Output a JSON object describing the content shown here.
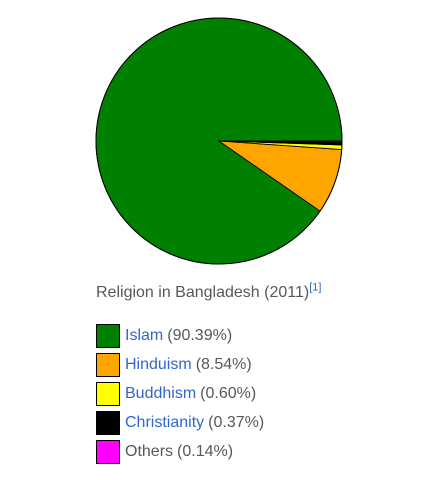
{
  "chart_data": {
    "type": "pie",
    "title": "Religion in Bangladesh (2011)",
    "citation": "[1]",
    "slices": [
      {
        "name": "Islam",
        "value": 90.39,
        "label": "(90.39%)",
        "color": "#008000",
        "linked": true
      },
      {
        "name": "Hinduism",
        "value": 8.54,
        "label": "(8.54%)",
        "color": "#ffa500",
        "linked": true
      },
      {
        "name": "Buddhism",
        "value": 0.6,
        "label": "(0.60%)",
        "color": "#ffff00",
        "linked": true
      },
      {
        "name": "Christianity",
        "value": 0.37,
        "label": "(0.37%)",
        "color": "#000000",
        "linked": true
      },
      {
        "name": "Others",
        "value": 0.14,
        "label": "(0.14%)",
        "color": "#ff00ff",
        "linked": false
      }
    ]
  }
}
